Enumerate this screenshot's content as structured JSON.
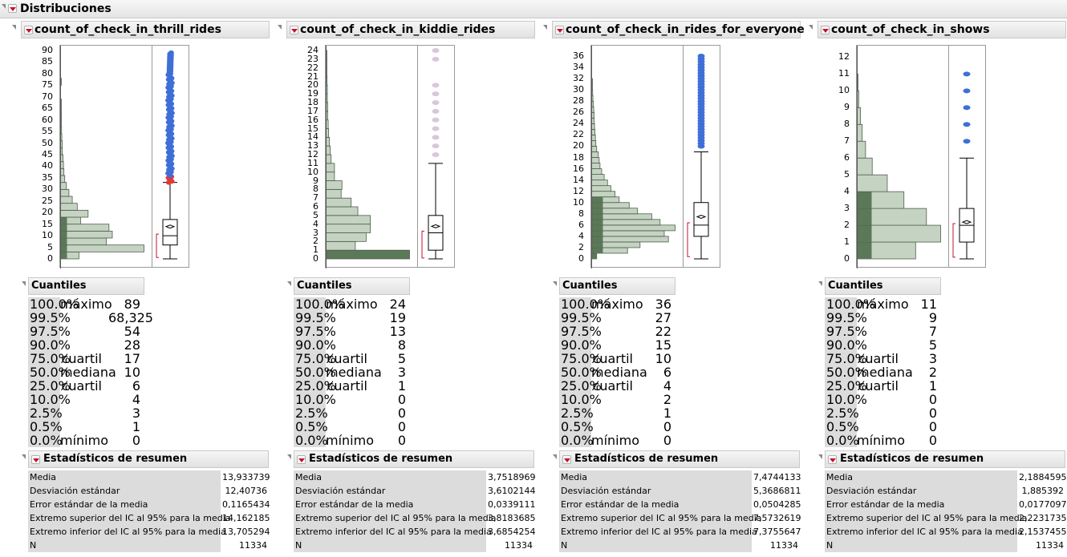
{
  "report": {
    "title": "Distribuciones"
  },
  "sections": {
    "quantiles_title": "Cuantiles",
    "summary_title": "Estadísticos de resumen"
  },
  "quantile_rows": [
    {
      "pct": "100.0%",
      "label": "máximo"
    },
    {
      "pct": "99.5%",
      "label": ""
    },
    {
      "pct": "97.5%",
      "label": ""
    },
    {
      "pct": "90.0%",
      "label": ""
    },
    {
      "pct": "75.0%",
      "label": "cuartil"
    },
    {
      "pct": "50.0%",
      "label": "mediana"
    },
    {
      "pct": "25.0%",
      "label": "cuartil"
    },
    {
      "pct": "10.0%",
      "label": ""
    },
    {
      "pct": "2.5%",
      "label": ""
    },
    {
      "pct": "0.5%",
      "label": ""
    },
    {
      "pct": "0.0%",
      "label": "mínimo"
    }
  ],
  "summary_labels": [
    "Media",
    "Desviación estándar",
    "Error estándar de la media",
    "Extremo superior del IC al 95% para la media",
    "Extremo inferior del IC al 95% para la media",
    "N"
  ],
  "colors": {
    "bar": "#c5d4c2",
    "bar_dark": "#5b7858",
    "outlier": "#3f6fd6",
    "outlier_low": "#e03a3a",
    "outlier_light": "#d9c6dc",
    "bracket": "#c8102e"
  },
  "panels": [
    {
      "name": "count_of_check_in_thrill_rides",
      "chart_data": {
        "type": "histogram_boxplot",
        "ylim": [
          0,
          90
        ],
        "ticks": [
          0,
          5,
          10,
          15,
          20,
          25,
          30,
          35,
          40,
          45,
          50,
          55,
          60,
          65,
          70,
          75,
          80,
          85,
          90
        ],
        "bin_width": 3,
        "bins": [
          {
            "from": 0,
            "count": 0.22
          },
          {
            "from": 3,
            "count": 1.0
          },
          {
            "from": 6,
            "count": 0.55
          },
          {
            "from": 9,
            "count": 0.62
          },
          {
            "from": 12,
            "count": 0.58
          },
          {
            "from": 15,
            "count": 0.24
          },
          {
            "from": 18,
            "count": 0.33
          },
          {
            "from": 21,
            "count": 0.2
          },
          {
            "from": 24,
            "count": 0.14
          },
          {
            "from": 27,
            "count": 0.1
          },
          {
            "from": 30,
            "count": 0.07
          },
          {
            "from": 33,
            "count": 0.05
          },
          {
            "from": 36,
            "count": 0.04
          },
          {
            "from": 39,
            "count": 0.035
          },
          {
            "from": 42,
            "count": 0.03
          },
          {
            "from": 45,
            "count": 0.02
          },
          {
            "from": 48,
            "count": 0.02
          },
          {
            "from": 51,
            "count": 0.015
          },
          {
            "from": 54,
            "count": 0.012
          },
          {
            "from": 57,
            "count": 0.01
          },
          {
            "from": 60,
            "count": 0.01
          },
          {
            "from": 63,
            "count": 0.008
          },
          {
            "from": 66,
            "count": 0.006
          },
          {
            "from": 75,
            "count": 0.004
          }
        ],
        "box": {
          "min": 0,
          "q1": 6,
          "median": 10,
          "q3": 17,
          "mean": 13.933739,
          "whisker_hi": 33,
          "max": 89
        },
        "outlier_style": "dense_blue"
      },
      "quantile_values": [
        "89",
        "68,325",
        "54",
        "28",
        "17",
        "10",
        "6",
        "4",
        "3",
        "1",
        "0"
      ],
      "summary_values": [
        "13,933739",
        "12,40736",
        "0,1165434",
        "14,162185",
        "13,705294",
        "11334"
      ]
    },
    {
      "name": "count_of_check_in_kiddie_rides",
      "chart_data": {
        "type": "histogram_boxplot",
        "ylim": [
          0,
          24
        ],
        "ticks": [
          0,
          1,
          2,
          3,
          4,
          5,
          6,
          7,
          8,
          9,
          10,
          11,
          12,
          13,
          14,
          15,
          16,
          17,
          18,
          19,
          20,
          21,
          22,
          23,
          24
        ],
        "bin_width": 1,
        "bins": [
          {
            "from": 0,
            "count": 1.0
          },
          {
            "from": 1,
            "count": 0.35
          },
          {
            "from": 2,
            "count": 0.48
          },
          {
            "from": 3,
            "count": 0.53
          },
          {
            "from": 4,
            "count": 0.53
          },
          {
            "from": 5,
            "count": 0.38
          },
          {
            "from": 6,
            "count": 0.3
          },
          {
            "from": 7,
            "count": 0.18
          },
          {
            "from": 8,
            "count": 0.19
          },
          {
            "from": 9,
            "count": 0.1
          },
          {
            "from": 10,
            "count": 0.1
          },
          {
            "from": 11,
            "count": 0.06
          },
          {
            "from": 12,
            "count": 0.05
          },
          {
            "from": 13,
            "count": 0.04
          },
          {
            "from": 14,
            "count": 0.03
          },
          {
            "from": 15,
            "count": 0.025
          },
          {
            "from": 16,
            "count": 0.02
          },
          {
            "from": 17,
            "count": 0.02
          },
          {
            "from": 18,
            "count": 0.015
          },
          {
            "from": 19,
            "count": 0.015
          },
          {
            "from": 20,
            "count": 0.012
          },
          {
            "from": 21,
            "count": 0.01
          },
          {
            "from": 22,
            "count": 0.01
          },
          {
            "from": 23,
            "count": 0.008
          }
        ],
        "box": {
          "min": 0,
          "q1": 1,
          "median": 3,
          "q3": 5,
          "mean": 3.7518969,
          "whisker_hi": 11,
          "max": 24
        },
        "outlier_values": [
          12,
          13,
          14,
          15,
          16,
          17,
          18,
          19,
          20,
          23,
          24
        ],
        "outlier_style": "light"
      },
      "quantile_values": [
        "24",
        "19",
        "13",
        "8",
        "5",
        "3",
        "1",
        "0",
        "0",
        "0",
        "0"
      ],
      "summary_values": [
        "3,7518969",
        "3,6102144",
        "0,0339111",
        "3,8183685",
        "3,6854254",
        "11334"
      ]
    },
    {
      "name": "count_of_check_in_rides_for_everyone",
      "chart_data": {
        "type": "histogram_boxplot",
        "ylim": [
          0,
          37
        ],
        "ticks": [
          0,
          2,
          4,
          6,
          8,
          10,
          12,
          14,
          16,
          18,
          20,
          22,
          24,
          26,
          28,
          30,
          32,
          34,
          36
        ],
        "bin_width": 1,
        "bins": [
          {
            "from": 0,
            "count": 0.06
          },
          {
            "from": 1,
            "count": 0.43
          },
          {
            "from": 2,
            "count": 0.58
          },
          {
            "from": 3,
            "count": 0.92
          },
          {
            "from": 4,
            "count": 0.87
          },
          {
            "from": 5,
            "count": 1.0
          },
          {
            "from": 6,
            "count": 0.82
          },
          {
            "from": 7,
            "count": 0.72
          },
          {
            "from": 8,
            "count": 0.55
          },
          {
            "from": 9,
            "count": 0.45
          },
          {
            "from": 10,
            "count": 0.33
          },
          {
            "from": 11,
            "count": 0.28
          },
          {
            "from": 12,
            "count": 0.23
          },
          {
            "from": 13,
            "count": 0.19
          },
          {
            "from": 14,
            "count": 0.15
          },
          {
            "from": 15,
            "count": 0.12
          },
          {
            "from": 16,
            "count": 0.1
          },
          {
            "from": 17,
            "count": 0.09
          },
          {
            "from": 18,
            "count": 0.08
          },
          {
            "from": 19,
            "count": 0.06
          },
          {
            "from": 20,
            "count": 0.05
          },
          {
            "from": 21,
            "count": 0.045
          },
          {
            "from": 22,
            "count": 0.04
          },
          {
            "from": 23,
            "count": 0.035
          },
          {
            "from": 24,
            "count": 0.03
          },
          {
            "from": 25,
            "count": 0.03
          },
          {
            "from": 26,
            "count": 0.025
          },
          {
            "from": 27,
            "count": 0.02
          },
          {
            "from": 28,
            "count": 0.015
          },
          {
            "from": 29,
            "count": 0.012
          },
          {
            "from": 30,
            "count": 0.01
          },
          {
            "from": 31,
            "count": 0.008
          }
        ],
        "box": {
          "min": 0,
          "q1": 4,
          "median": 6,
          "q3": 10,
          "mean": 7.4744133,
          "whisker_hi": 19,
          "max": 36
        },
        "outlier_style": "dense_blue_int"
      },
      "quantile_values": [
        "36",
        "27",
        "22",
        "15",
        "10",
        "6",
        "4",
        "2",
        "1",
        "0",
        "0"
      ],
      "summary_values": [
        "7,4744133",
        "5,3686811",
        "0,0504285",
        "7,5732619",
        "7,3755647",
        "11334"
      ]
    },
    {
      "name": "count_of_check_in_shows",
      "chart_data": {
        "type": "histogram_boxplot",
        "ylim": [
          0,
          12.4
        ],
        "ticks": [
          0,
          1,
          2,
          3,
          4,
          5,
          6,
          7,
          8,
          9,
          10,
          11,
          12
        ],
        "bin_width": 1,
        "bins": [
          {
            "from": 0,
            "count": 0.7
          },
          {
            "from": 1,
            "count": 1.0
          },
          {
            "from": 2,
            "count": 0.83
          },
          {
            "from": 3,
            "count": 0.56
          },
          {
            "from": 4,
            "count": 0.36
          },
          {
            "from": 5,
            "count": 0.18
          },
          {
            "from": 6,
            "count": 0.1
          },
          {
            "from": 7,
            "count": 0.06
          },
          {
            "from": 8,
            "count": 0.04
          },
          {
            "from": 9,
            "count": 0.02
          },
          {
            "from": 10,
            "count": 0.01
          }
        ],
        "box": {
          "min": 0,
          "q1": 1,
          "median": 2,
          "q3": 3,
          "mean": 2.1884595,
          "whisker_hi": 6,
          "max": 11
        },
        "outlier_values": [
          7,
          8,
          9,
          10,
          11
        ],
        "outlier_style": "blue_int"
      },
      "quantile_values": [
        "11",
        "9",
        "7",
        "5",
        "3",
        "2",
        "1",
        "0",
        "0",
        "0",
        "0"
      ],
      "summary_values": [
        "2,1884595",
        "1,885392",
        "0,0177097",
        "2,2231735",
        "2,1537455",
        "11334"
      ]
    }
  ]
}
